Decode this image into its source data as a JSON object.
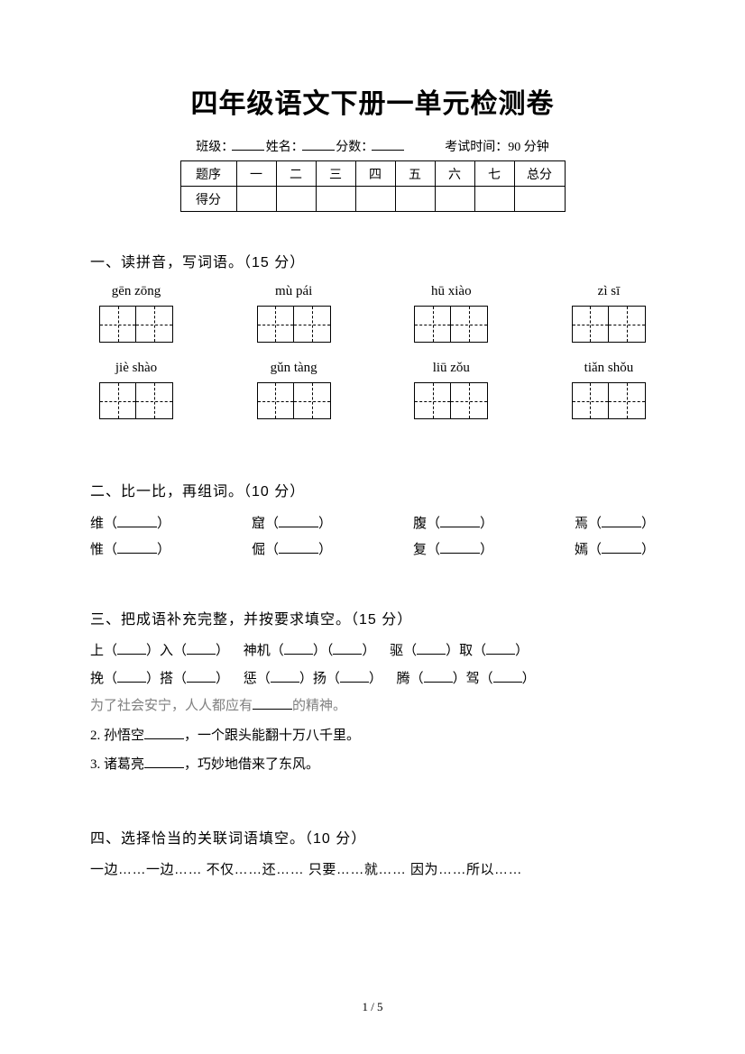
{
  "title": "四年级语文下册一单元检测卷",
  "infoLine": {
    "class": "班级：",
    "name": "姓名：",
    "score": "分数：",
    "examTime": "考试时间：90 分钟"
  },
  "scoreTable": {
    "row1": [
      "题序",
      "一",
      "二",
      "三",
      "四",
      "五",
      "六",
      "七",
      "总分"
    ],
    "row2Label": "得分"
  },
  "section1": {
    "heading": "一、读拼音，写词语。（15 分）",
    "row1": [
      "gēn zōng",
      "mù pái",
      "hū xiào",
      "zì sī"
    ],
    "row2": [
      "jiè shào",
      "gǔn tàng",
      "liū zǒu",
      "tiǎn shǒu"
    ]
  },
  "section2": {
    "heading": "二、比一比，再组词。（10 分）",
    "rows": [
      [
        "维",
        "窟",
        "腹",
        "焉"
      ],
      [
        "惟",
        "倔",
        "复",
        "嫣"
      ]
    ]
  },
  "section3": {
    "heading": "三、把成语补充完整，并按要求填空。（15 分）",
    "line1": [
      {
        "pre": "上（",
        "mid": "）入（",
        "post": "）"
      },
      {
        "pre": "神机（",
        "mid": "）（",
        "post": "）"
      },
      {
        "pre": "驱（",
        "mid": "）取（",
        "post": "）"
      }
    ],
    "line2": [
      {
        "pre": "挽（",
        "mid": "）搭（",
        "post": "）"
      },
      {
        "pre": "惩（",
        "mid": "）扬（",
        "post": "）"
      },
      {
        "pre": "腾（",
        "mid": "）驾（",
        "post": "）"
      }
    ],
    "note": "为了社会安宁，人人都应有",
    "noteTail": "的精神。",
    "item2": "2. 孙悟空",
    "item2Tail": "，一个跟头能翻十万八千里。",
    "item3": "3. 诸葛亮",
    "item3Tail": "，巧妙地借来了东风。"
  },
  "section4": {
    "heading": "四、选择恰当的关联词语填空。（10 分）",
    "options": "一边……一边……  不仅……还……  只要……就……  因为……所以……"
  },
  "pageNumber": "1 / 5"
}
